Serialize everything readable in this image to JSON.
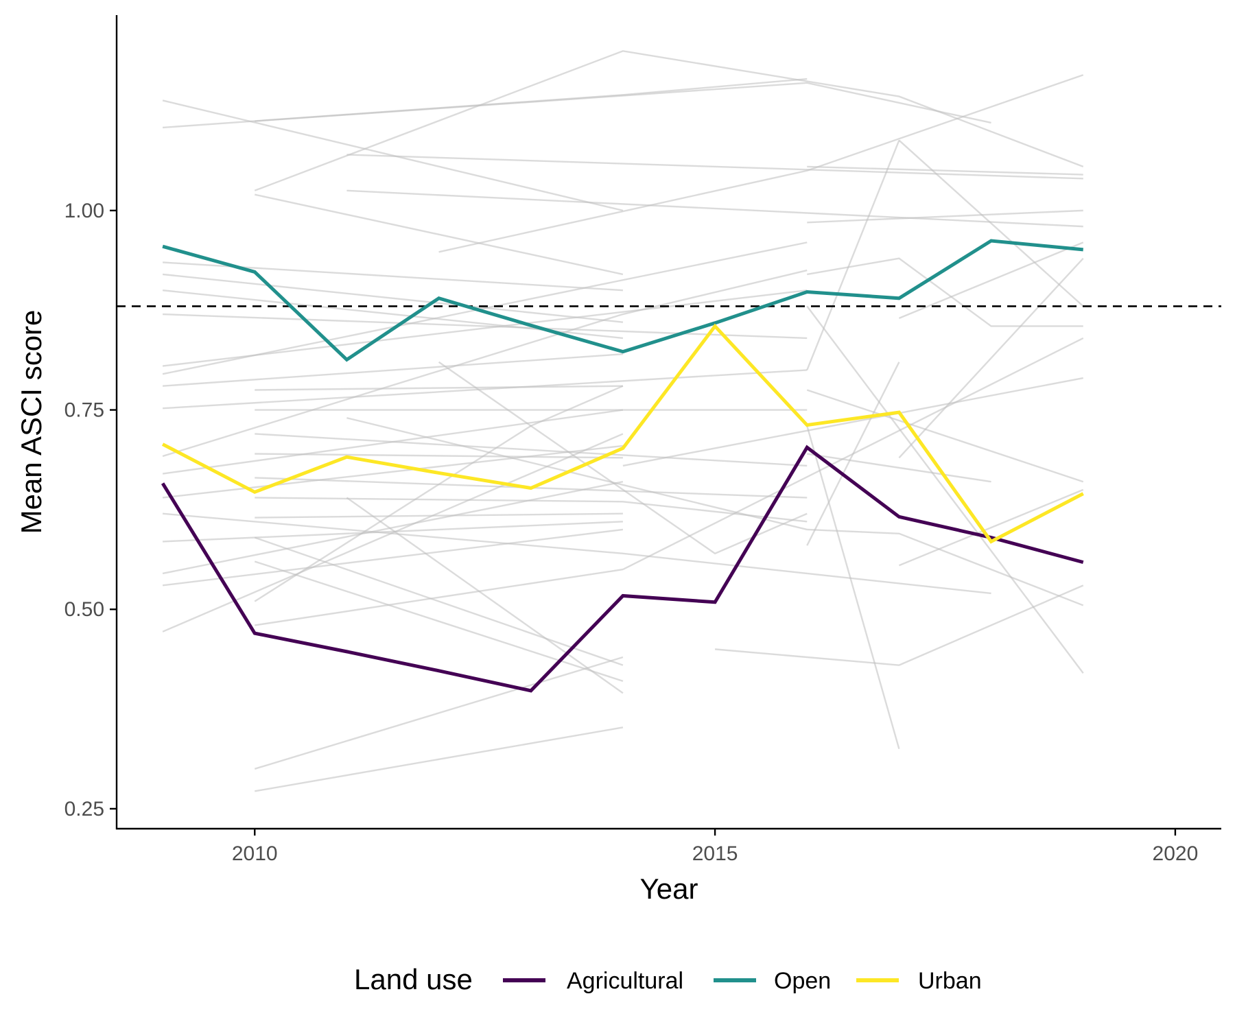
{
  "chart_data": {
    "type": "line",
    "title": "",
    "xlabel": "Year",
    "ylabel": "Mean ASCI score",
    "xlim": [
      2008.5,
      2020.5
    ],
    "ylim": [
      0.225,
      1.245
    ],
    "x_ticks": [
      2010,
      2015,
      2020
    ],
    "x_tick_labels": [
      "2010",
      "2015",
      "2020"
    ],
    "y_ticks": [
      0.25,
      0.5,
      0.75,
      1.0
    ],
    "y_tick_labels": [
      "0.25",
      "0.50",
      "0.75",
      "1.00"
    ],
    "grid": false,
    "reference_line": {
      "y": 0.88,
      "style": "dashed",
      "color": "#000000"
    },
    "legend": {
      "title": "Land use",
      "position": "bottom",
      "entries": [
        {
          "label": "Agricultural",
          "color": "#440154"
        },
        {
          "label": "Open",
          "color": "#21908C"
        },
        {
          "label": "Urban",
          "color": "#FDE725"
        }
      ]
    },
    "series": [
      {
        "name": "Agricultural",
        "color": "#440154",
        "x": [
          2009,
          2010,
          2011,
          2012,
          2013,
          2014,
          2015,
          2016,
          2017,
          2018,
          2019
        ],
        "y": [
          0.658,
          0.47,
          0.447,
          0.423,
          0.398,
          0.517,
          0.509,
          0.703,
          0.616,
          0.59,
          0.559
        ]
      },
      {
        "name": "Open",
        "color": "#21908C",
        "x": [
          2009,
          2010,
          2011,
          2012,
          2013,
          2014,
          2015,
          2016,
          2017,
          2018,
          2019
        ],
        "y": [
          0.955,
          0.923,
          0.813,
          0.89,
          0.856,
          0.823,
          0.859,
          0.898,
          0.89,
          0.962,
          0.951
        ]
      },
      {
        "name": "Urban",
        "color": "#FDE725",
        "x": [
          2009,
          2010,
          2011,
          2012,
          2013,
          2014,
          2015,
          2016,
          2017,
          2018,
          2019
        ],
        "y": [
          0.707,
          0.647,
          0.691,
          0.671,
          0.652,
          0.702,
          0.855,
          0.731,
          0.747,
          0.585,
          0.645
        ]
      }
    ],
    "background_sites": {
      "color": "#bdbdbd",
      "lines": [
        [
          [
            2009,
            1.138
          ],
          [
            2014,
            1.0
          ]
        ],
        [
          [
            2009,
            1.104
          ],
          [
            2014,
            1.145
          ],
          [
            2016,
            1.165
          ]
        ],
        [
          [
            2010,
            1.025
          ],
          [
            2014,
            1.2
          ],
          [
            2017,
            1.143
          ],
          [
            2019,
            1.055
          ]
        ],
        [
          [
            2010,
            1.112
          ],
          [
            2016,
            1.16
          ],
          [
            2018,
            1.11
          ]
        ],
        [
          [
            2011,
            1.07
          ],
          [
            2019,
            1.04
          ]
        ],
        [
          [
            2016,
            1.055
          ],
          [
            2019,
            1.045
          ]
        ],
        [
          [
            2012,
            0.948
          ],
          [
            2016,
            1.05
          ],
          [
            2019,
            1.17
          ]
        ],
        [
          [
            2011,
            1.025
          ],
          [
            2019,
            0.98
          ]
        ],
        [
          [
            2010,
            1.02
          ],
          [
            2014,
            0.92
          ]
        ],
        [
          [
            2016,
            0.985
          ],
          [
            2019,
            1.0
          ]
        ],
        [
          [
            2017,
            1.088
          ],
          [
            2019,
            0.88
          ]
        ],
        [
          [
            2016,
            0.8
          ],
          [
            2017,
            1.088
          ]
        ],
        [
          [
            2009,
            0.935
          ],
          [
            2014,
            0.9
          ]
        ],
        [
          [
            2009,
            0.92
          ],
          [
            2014,
            0.86
          ]
        ],
        [
          [
            2009,
            0.9
          ],
          [
            2014,
            0.84
          ]
        ],
        [
          [
            2009,
            0.87
          ],
          [
            2016,
            0.84
          ]
        ],
        [
          [
            2009,
            0.805
          ],
          [
            2016,
            0.9
          ]
        ],
        [
          [
            2009,
            0.795
          ],
          [
            2016,
            0.96
          ]
        ],
        [
          [
            2009,
            0.78
          ],
          [
            2014,
            0.82
          ]
        ],
        [
          [
            2009,
            0.752
          ],
          [
            2016,
            0.8
          ]
        ],
        [
          [
            2009,
            0.692
          ],
          [
            2014,
            0.87
          ],
          [
            2016,
            0.925
          ]
        ],
        [
          [
            2009,
            0.67
          ],
          [
            2014,
            0.75
          ]
        ],
        [
          [
            2009,
            0.64
          ],
          [
            2014,
            0.705
          ]
        ],
        [
          [
            2009,
            0.62
          ],
          [
            2014,
            0.57
          ],
          [
            2016,
            0.545
          ]
        ],
        [
          [
            2009,
            0.585
          ],
          [
            2014,
            0.61
          ]
        ],
        [
          [
            2009,
            0.545
          ],
          [
            2014,
            0.66
          ]
        ],
        [
          [
            2009,
            0.53
          ],
          [
            2014,
            0.6
          ]
        ],
        [
          [
            2009,
            0.472
          ],
          [
            2014,
            0.72
          ]
        ],
        [
          [
            2010,
            0.775
          ],
          [
            2014,
            0.78
          ]
        ],
        [
          [
            2010,
            0.75
          ],
          [
            2016,
            0.75
          ]
        ],
        [
          [
            2010,
            0.72
          ],
          [
            2016,
            0.68
          ]
        ],
        [
          [
            2010,
            0.695
          ],
          [
            2014,
            0.69
          ]
        ],
        [
          [
            2010,
            0.665
          ],
          [
            2016,
            0.64
          ]
        ],
        [
          [
            2010,
            0.64
          ],
          [
            2014,
            0.635
          ],
          [
            2016,
            0.61
          ]
        ],
        [
          [
            2010,
            0.615
          ],
          [
            2014,
            0.62
          ]
        ],
        [
          [
            2010,
            0.59
          ],
          [
            2014,
            0.43
          ]
        ],
        [
          [
            2010,
            0.56
          ],
          [
            2014,
            0.41
          ]
        ],
        [
          [
            2010,
            0.51
          ],
          [
            2013,
            0.73
          ],
          [
            2014,
            0.78
          ]
        ],
        [
          [
            2010,
            0.48
          ],
          [
            2014,
            0.55
          ]
        ],
        [
          [
            2010,
            0.3
          ],
          [
            2014,
            0.44
          ]
        ],
        [
          [
            2010,
            0.272
          ],
          [
            2014,
            0.352
          ]
        ],
        [
          [
            2011,
            0.64
          ],
          [
            2014,
            0.395
          ]
        ],
        [
          [
            2011,
            0.74
          ],
          [
            2016,
            0.6
          ]
        ],
        [
          [
            2012,
            0.81
          ],
          [
            2015,
            0.57
          ],
          [
            2016,
            0.62
          ]
        ],
        [
          [
            2014,
            0.68
          ],
          [
            2019,
            0.79
          ]
        ],
        [
          [
            2014,
            0.55
          ],
          [
            2019,
            0.84
          ]
        ],
        [
          [
            2015,
            0.45
          ],
          [
            2017,
            0.43
          ],
          [
            2019,
            0.53
          ]
        ],
        [
          [
            2016,
            0.6
          ],
          [
            2017,
            0.595
          ],
          [
            2019,
            0.505
          ]
        ],
        [
          [
            2016,
            0.58
          ],
          [
            2017,
            0.81
          ]
        ],
        [
          [
            2016,
            0.775
          ],
          [
            2019,
            0.66
          ]
        ],
        [
          [
            2016,
            0.88
          ],
          [
            2019,
            0.42
          ]
        ],
        [
          [
            2016,
            0.545
          ],
          [
            2018,
            0.52
          ]
        ],
        [
          [
            2016,
            0.695
          ],
          [
            2018,
            0.66
          ]
        ],
        [
          [
            2016,
            0.73
          ],
          [
            2017,
            0.325
          ]
        ],
        [
          [
            2016,
            0.92
          ],
          [
            2017,
            0.94
          ],
          [
            2018,
            0.855
          ],
          [
            2019,
            0.855
          ]
        ],
        [
          [
            2017,
            0.555
          ],
          [
            2019,
            0.65
          ]
        ],
        [
          [
            2017,
            0.865
          ],
          [
            2019,
            0.96
          ]
        ],
        [
          [
            2017,
            0.69
          ],
          [
            2019,
            0.94
          ]
        ]
      ]
    }
  }
}
